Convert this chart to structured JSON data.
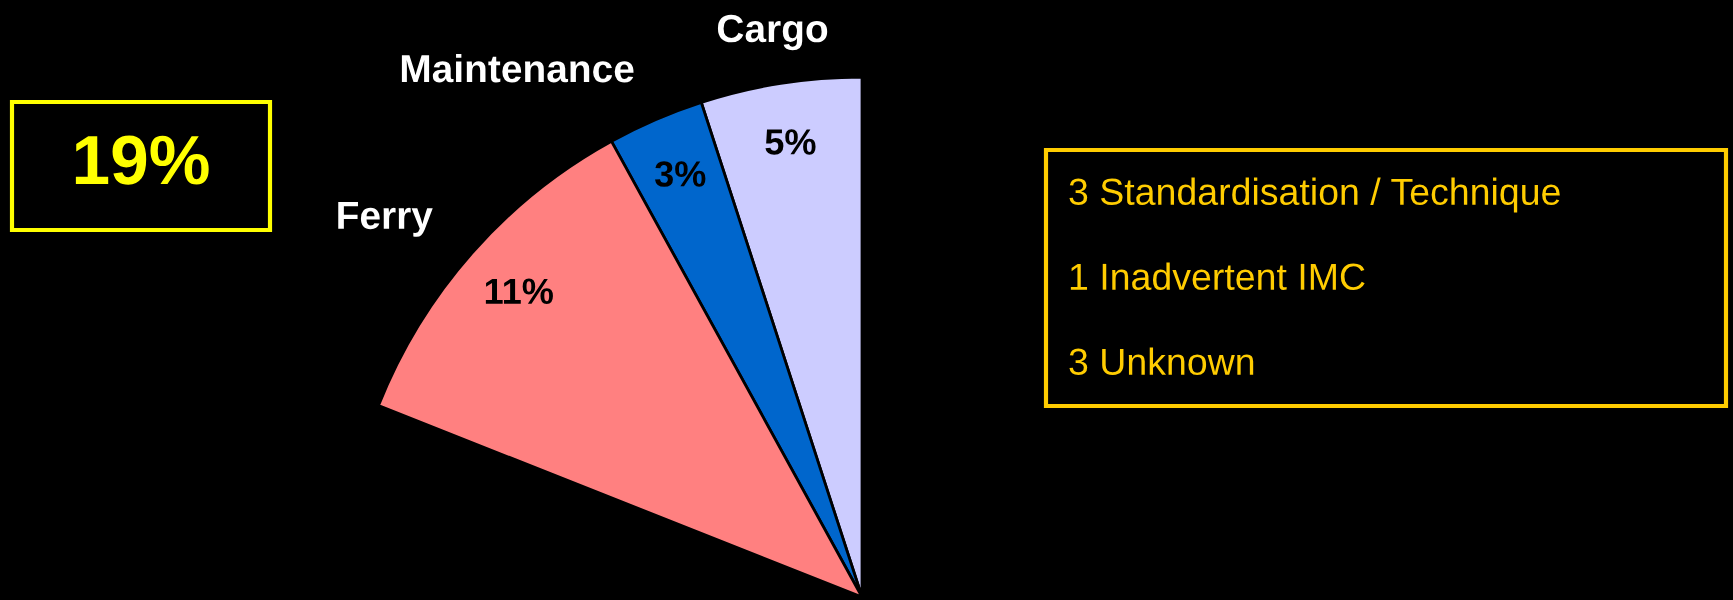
{
  "chart_data": {
    "type": "pie",
    "categories": [
      "Cargo",
      "Maintenance",
      "Ferry"
    ],
    "values": [
      5,
      3,
      11
    ],
    "colors": [
      "#ccccff",
      "#0066cc",
      "#ff8080"
    ],
    "value_labels": [
      "5%",
      "3%",
      "11%"
    ],
    "annotations": [
      "19%",
      "3 Standardisation / Technique",
      "1 Inadvertent IMC",
      "3 Unknown"
    ]
  }
}
